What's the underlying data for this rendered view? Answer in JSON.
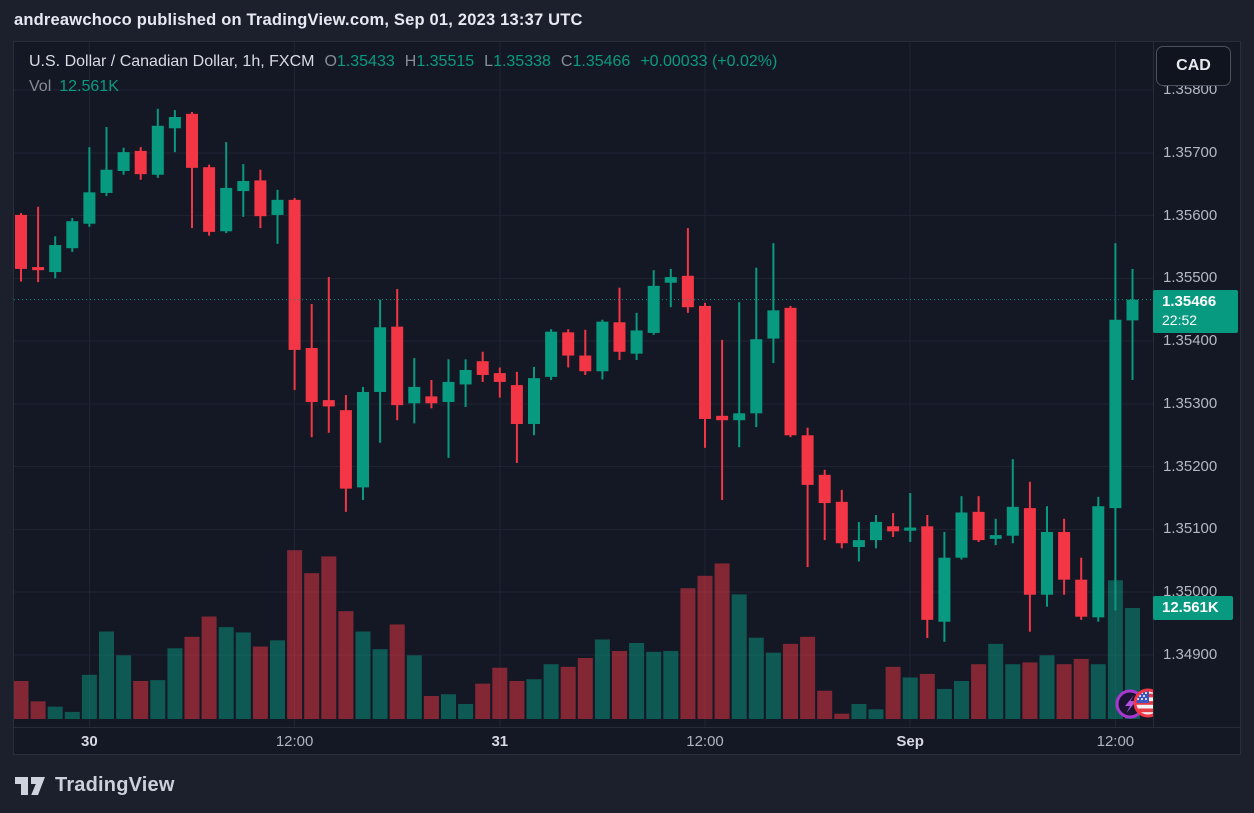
{
  "page": {
    "attribution": "andreawchoco published on TradingView.com, Sep 01, 2023 13:37 UTC",
    "brand": "TradingView"
  },
  "header": {
    "symbol_title": "U.S. Dollar / Canadian Dollar, 1h, FXCM",
    "ohlc": {
      "o_label": "O",
      "o": "1.35433",
      "h_label": "H",
      "h": "1.35515",
      "l_label": "L",
      "l": "1.35338",
      "c_label": "C",
      "c": "1.35466",
      "change": "+0.00033 (+0.02%)"
    },
    "volume_label": "Vol",
    "volume_value": "12.561K",
    "currency_button": "CAD"
  },
  "badges": {
    "price": {
      "value": "1.35466",
      "countdown": "22:52"
    },
    "volume": {
      "value": "12.561K"
    }
  },
  "axes": {
    "price_ticks": [
      "1.35800",
      "1.35700",
      "1.35600",
      "1.35500",
      "1.35400",
      "1.35300",
      "1.35200",
      "1.35100",
      "1.35000",
      "1.34900"
    ],
    "time_ticks": [
      {
        "label": "30",
        "index": 4,
        "major": true
      },
      {
        "label": "12:00",
        "index": 16,
        "major": false
      },
      {
        "label": "31",
        "index": 28,
        "major": true
      },
      {
        "label": "12:00",
        "index": 40,
        "major": false
      },
      {
        "label": "Sep",
        "index": 52,
        "major": true
      },
      {
        "label": "12:00",
        "index": 64,
        "major": false
      }
    ]
  },
  "colors": {
    "up": "#089981",
    "down": "#f23645",
    "volume_up": "rgba(8,153,129,0.5)",
    "volume_down": "rgba(242,54,69,0.5)",
    "grid": "#1f2433",
    "badge_bg": "#089981",
    "background": "#141824"
  },
  "chart_data": {
    "type": "candlestick+volume",
    "title": "U.S. Dollar / Canadian Dollar, 1h, FXCM",
    "timeframe": "1h",
    "quote_currency": "CAD",
    "price_axis_range": [
      1.3479,
      1.35876
    ],
    "current_price": 1.35466,
    "current_volume_k": 12.561,
    "legend_position": "top-left",
    "grid": true,
    "columns": [
      "time_utc",
      "open",
      "high",
      "low",
      "close",
      "volume_k"
    ],
    "candles": [
      [
        "08-29 20:00",
        1.35601,
        1.35604,
        1.35495,
        1.35515,
        4.3
      ],
      [
        "08-29 21:00",
        1.35518,
        1.35614,
        1.35494,
        1.35513,
        2.0
      ],
      [
        "08-29 22:00",
        1.3551,
        1.35567,
        1.355,
        1.35553,
        1.4
      ],
      [
        "08-29 23:00",
        1.35548,
        1.35596,
        1.35542,
        1.35591,
        0.8
      ],
      [
        "08-30 00:00",
        1.35587,
        1.35709,
        1.35582,
        1.35637,
        5.0
      ],
      [
        "08-30 01:00",
        1.35636,
        1.35741,
        1.35631,
        1.35673,
        9.9
      ],
      [
        "08-30 02:00",
        1.35671,
        1.35708,
        1.35665,
        1.35701,
        7.2
      ],
      [
        "08-30 03:00",
        1.35703,
        1.35709,
        1.35657,
        1.35666,
        4.3
      ],
      [
        "08-30 04:00",
        1.35665,
        1.3577,
        1.3566,
        1.35743,
        4.4
      ],
      [
        "08-30 05:00",
        1.35739,
        1.35768,
        1.35701,
        1.35757,
        8.0
      ],
      [
        "08-30 06:00",
        1.35762,
        1.35765,
        1.3558,
        1.35676,
        9.3
      ],
      [
        "08-30 07:00",
        1.35677,
        1.35681,
        1.35568,
        1.35574,
        11.6
      ],
      [
        "08-30 08:00",
        1.35575,
        1.35717,
        1.35572,
        1.35644,
        10.4
      ],
      [
        "08-30 09:00",
        1.35639,
        1.35682,
        1.35598,
        1.35655,
        9.8
      ],
      [
        "08-30 10:00",
        1.35656,
        1.35673,
        1.3558,
        1.35599,
        8.2
      ],
      [
        "08-30 11:00",
        1.35601,
        1.35641,
        1.35555,
        1.35625,
        8.9
      ],
      [
        "08-30 12:00",
        1.35625,
        1.35628,
        1.35322,
        1.35386,
        19.1
      ],
      [
        "08-30 13:00",
        1.35389,
        1.35459,
        1.35247,
        1.35303,
        16.5
      ],
      [
        "08-30 14:00",
        1.35306,
        1.35502,
        1.35254,
        1.35296,
        18.4
      ],
      [
        "08-30 15:00",
        1.3529,
        1.35314,
        1.35128,
        1.35165,
        12.2
      ],
      [
        "08-30 16:00",
        1.35167,
        1.35327,
        1.35147,
        1.35319,
        9.9
      ],
      [
        "08-30 17:00",
        1.35319,
        1.35466,
        1.35238,
        1.35422,
        7.9
      ],
      [
        "08-30 18:00",
        1.35423,
        1.35483,
        1.35274,
        1.35298,
        10.7
      ],
      [
        "08-30 19:00",
        1.35301,
        1.35373,
        1.35269,
        1.35327,
        7.2
      ],
      [
        "08-30 20:00",
        1.35312,
        1.35338,
        1.35293,
        1.35301,
        2.6
      ],
      [
        "08-30 21:00",
        1.35303,
        1.35371,
        1.35214,
        1.35335,
        2.8
      ],
      [
        "08-30 22:00",
        1.35331,
        1.35371,
        1.35295,
        1.35354,
        1.7
      ],
      [
        "08-30 23:00",
        1.35368,
        1.35383,
        1.35335,
        1.35346,
        4.0
      ],
      [
        "08-31 00:00",
        1.35349,
        1.35358,
        1.3531,
        1.35335,
        5.8
      ],
      [
        "08-31 01:00",
        1.3533,
        1.35351,
        1.35206,
        1.35268,
        4.3
      ],
      [
        "08-31 02:00",
        1.35268,
        1.35359,
        1.3525,
        1.35341,
        4.5
      ],
      [
        "08-31 03:00",
        1.35343,
        1.35419,
        1.35338,
        1.35415,
        6.2
      ],
      [
        "08-31 04:00",
        1.35414,
        1.35419,
        1.35358,
        1.35377,
        5.9
      ],
      [
        "08-31 05:00",
        1.35377,
        1.35418,
        1.35346,
        1.35352,
        6.9
      ],
      [
        "08-31 06:00",
        1.35352,
        1.35434,
        1.35339,
        1.35431,
        9.0
      ],
      [
        "08-31 07:00",
        1.3543,
        1.35485,
        1.3537,
        1.35383,
        7.7
      ],
      [
        "08-31 08:00",
        1.3538,
        1.35445,
        1.3537,
        1.35417,
        8.6
      ],
      [
        "08-31 09:00",
        1.35413,
        1.35513,
        1.3541,
        1.35488,
        7.6
      ],
      [
        "08-31 10:00",
        1.35493,
        1.35515,
        1.35454,
        1.35502,
        7.7
      ],
      [
        "08-31 11:00",
        1.35504,
        1.3558,
        1.35445,
        1.35454,
        14.8
      ],
      [
        "08-31 12:00",
        1.35456,
        1.35461,
        1.3523,
        1.35276,
        16.2
      ],
      [
        "08-31 13:00",
        1.35281,
        1.35402,
        1.35147,
        1.35274,
        17.6
      ],
      [
        "08-31 14:00",
        1.35274,
        1.35462,
        1.35231,
        1.35285,
        14.1
      ],
      [
        "08-31 15:00",
        1.35285,
        1.35517,
        1.35263,
        1.35403,
        9.2
      ],
      [
        "08-31 16:00",
        1.35404,
        1.35556,
        1.35365,
        1.35449,
        7.5
      ],
      [
        "08-31 17:00",
        1.35453,
        1.35456,
        1.35247,
        1.3525,
        8.5
      ],
      [
        "08-31 18:00",
        1.3525,
        1.35262,
        1.3504,
        1.35171,
        9.3
      ],
      [
        "08-31 19:00",
        1.35187,
        1.35195,
        1.35083,
        1.35142,
        3.2
      ],
      [
        "08-31 20:00",
        1.35144,
        1.35163,
        1.3507,
        1.35078,
        0.6
      ],
      [
        "08-31 21:00",
        1.35072,
        1.35112,
        1.35049,
        1.35083,
        1.7
      ],
      [
        "08-31 22:00",
        1.35083,
        1.35123,
        1.3507,
        1.35112,
        1.1
      ],
      [
        "08-31 23:00",
        1.35105,
        1.35126,
        1.35088,
        1.35097,
        5.9
      ],
      [
        "09-01 00:00",
        1.35098,
        1.35158,
        1.3508,
        1.35103,
        4.7
      ],
      [
        "09-01 01:00",
        1.35105,
        1.35123,
        1.34927,
        1.34956,
        5.1
      ],
      [
        "09-01 02:00",
        1.34953,
        1.35096,
        1.34921,
        1.35055,
        3.4
      ],
      [
        "09-01 03:00",
        1.35055,
        1.35153,
        1.35052,
        1.35127,
        4.3
      ],
      [
        "09-01 04:00",
        1.35128,
        1.35153,
        1.3508,
        1.35083,
        6.2
      ],
      [
        "09-01 05:00",
        1.35085,
        1.35117,
        1.35075,
        1.35091,
        8.5
      ],
      [
        "09-01 06:00",
        1.3509,
        1.35212,
        1.35078,
        1.35136,
        6.2
      ],
      [
        "09-01 07:00",
        1.35134,
        1.35176,
        1.34937,
        1.34996,
        6.4
      ],
      [
        "09-01 08:00",
        1.34996,
        1.35137,
        1.34977,
        1.35096,
        7.2
      ],
      [
        "09-01 09:00",
        1.35096,
        1.35117,
        1.34996,
        1.3502,
        6.2
      ],
      [
        "09-01 10:00",
        1.3502,
        1.35055,
        1.34956,
        1.34961,
        6.8
      ],
      [
        "09-01 11:00",
        1.3496,
        1.35152,
        1.34953,
        1.35137,
        6.2
      ],
      [
        "09-01 12:00",
        1.35134,
        1.35556,
        1.34971,
        1.35434,
        15.7
      ],
      [
        "09-01 13:00",
        1.35433,
        1.35515,
        1.35338,
        1.35466,
        12.561
      ]
    ]
  }
}
